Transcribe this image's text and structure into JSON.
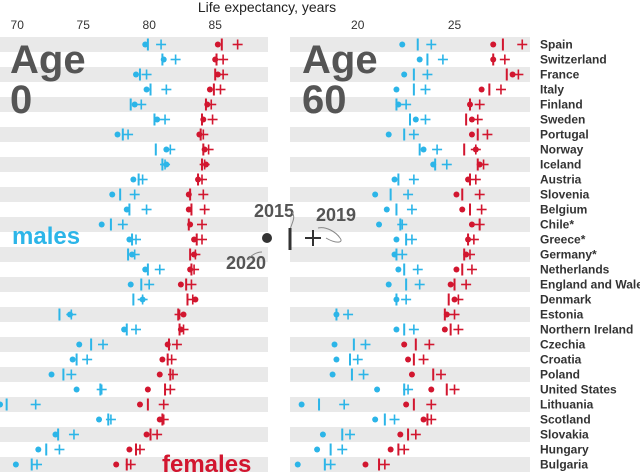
{
  "title": "Life expectancy, years",
  "colors": {
    "males": "#2cb5e8",
    "females": "#d2162f",
    "band": "#e9e9e9",
    "text": "#555555",
    "legend": "#333333"
  },
  "panels": [
    {
      "label_line1": "Age",
      "label_line2": "0",
      "ticks": [
        "70",
        "75",
        "80",
        "85"
      ]
    },
    {
      "label_line1": "Age",
      "label_line2": "60",
      "ticks": [
        "20",
        "25"
      ]
    }
  ],
  "series_labels": {
    "males": "males",
    "females": "females"
  },
  "legend": {
    "year_2015": "2015",
    "year_2019": "2019",
    "year_2020": "2020"
  },
  "chart_data": [
    {
      "type": "scatter",
      "panel": "Age 0",
      "xlim": [
        69,
        89
      ],
      "grid": "alternating row bands",
      "countries": [
        "Spain",
        "Switzerland",
        "France",
        "Italy",
        "Finland",
        "Sweden",
        "Portugal",
        "Norway",
        "Iceland",
        "Austria",
        "Slovenia",
        "Belgium",
        "Chile*",
        "Greece*",
        "Germany*",
        "Netherlands",
        "England and Wales",
        "Denmark",
        "Estonia",
        "Northern Ireland",
        "Czechia",
        "Croatia",
        "Poland",
        "United States",
        "Lithuania",
        "Scotland",
        "Slovakia",
        "Hungary",
        "Bulgaria"
      ],
      "series": [
        {
          "name": "males",
          "y2015": [
            79.9,
            81.0,
            79.3,
            80.1,
            78.6,
            80.4,
            78.0,
            80.5,
            81.0,
            79.2,
            77.8,
            78.5,
            77.1,
            78.7,
            78.4,
            79.9,
            79.4,
            78.8,
            73.2,
            78.3,
            75.6,
            74.5,
            73.5,
            76.3,
            69.2,
            76.9,
            73.1,
            72.2,
            71.1
          ],
          "y2019": [
            80.9,
            82.0,
            79.8,
            81.3,
            79.4,
            81.2,
            78.4,
            81.6,
            81.2,
            79.5,
            78.9,
            79.8,
            78.0,
            79.0,
            78.9,
            80.8,
            80.0,
            79.5,
            74.1,
            79.0,
            76.5,
            75.3,
            74.1,
            76.4,
            71.4,
            77.1,
            74.3,
            73.2,
            71.5
          ]
        },
        {
          "name": "males_2020",
          "values": [
            79.7,
            81.1,
            79.0,
            79.8,
            78.9,
            80.6,
            77.6,
            81.3,
            81.3,
            78.8,
            77.2,
            78.3,
            76.4,
            78.5,
            78.7,
            79.7,
            78.6,
            79.5,
            74.0,
            78.1,
            74.7,
            74.2,
            72.6,
            74.5,
            68.7,
            76.2,
            72.9,
            71.6,
            69.9
          ]
        },
        {
          "name": "females",
          "y2015": [
            85.5,
            85.1,
            85.0,
            84.9,
            84.3,
            84.0,
            83.9,
            84.1,
            84.0,
            83.7,
            83.1,
            83.2,
            83.0,
            83.6,
            83.1,
            83.2,
            82.8,
            82.9,
            82.2,
            82.3,
            81.5,
            81.4,
            81.6,
            81.2,
            79.9,
            81.0,
            80.1,
            79.0,
            78.3
          ]
        },
        {
          "name": "females_2019",
          "values": [
            86.7,
            85.6,
            85.6,
            85.4,
            84.7,
            84.8,
            84.1,
            84.5,
            84.2,
            84.0,
            84.1,
            84.2,
            84.0,
            84.0,
            83.5,
            83.4,
            83.2,
            83.3,
            82.3,
            82.6,
            82.1,
            81.7,
            81.8,
            81.6,
            81.1,
            81.1,
            80.6,
            79.3,
            78.6
          ]
        },
        {
          "name": "females_2020",
          "values": [
            85.2,
            85.0,
            85.2,
            84.6,
            84.4,
            84.1,
            83.8,
            84.2,
            84.3,
            83.7,
            83.0,
            83.0,
            83.1,
            83.4,
            83.4,
            83.1,
            82.4,
            83.5,
            82.6,
            82.4,
            81.4,
            81.0,
            80.8,
            79.9,
            79.3,
            80.8,
            79.8,
            78.5,
            77.5
          ]
        }
      ]
    },
    {
      "type": "scatter",
      "panel": "Age 60",
      "xlim": [
        16.5,
        28.9
      ],
      "grid": "alternating row bands",
      "countries": [
        "Spain",
        "Switzerland",
        "France",
        "Italy",
        "Finland",
        "Sweden",
        "Portugal",
        "Norway",
        "Iceland",
        "Austria",
        "Slovenia",
        "Belgium",
        "Chile*",
        "Greece*",
        "Germany*",
        "Netherlands",
        "England and Wales",
        "Denmark",
        "Estonia",
        "Northern Ireland",
        "Czechia",
        "Croatia",
        "Poland",
        "United States",
        "Lithuania",
        "Scotland",
        "Slovakia",
        "Hungary",
        "Bulgaria"
      ],
      "series": [
        {
          "name": "males",
          "y2015": [
            23.1,
            23.6,
            22.9,
            22.9,
            22.0,
            22.7,
            22.4,
            23.2,
            24.0,
            22.1,
            21.7,
            22.0,
            22.2,
            22.5,
            22.0,
            22.4,
            22.5,
            22.0,
            18.9,
            22.4,
            19.8,
            19.6,
            19.7,
            22.4,
            18.0,
            21.4,
            19.2,
            18.6,
            18.3
          ]
        },
        {
          "name": "males_2019",
          "values": [
            23.8,
            24.4,
            23.6,
            23.5,
            22.5,
            23.5,
            22.9,
            24.1,
            24.6,
            22.9,
            22.6,
            22.8,
            22.3,
            22.8,
            22.3,
            23.1,
            23.2,
            22.5,
            19.5,
            22.9,
            20.4,
            20.0,
            20.3,
            22.6,
            19.3,
            21.9,
            19.6,
            19.2,
            18.6
          ]
        },
        {
          "name": "males_2020",
          "values": [
            22.3,
            23.2,
            22.4,
            22.0,
            22.1,
            23.0,
            21.6,
            23.4,
            23.9,
            21.9,
            20.9,
            21.5,
            21.1,
            22.0,
            21.9,
            22.1,
            21.6,
            22.0,
            18.9,
            22.0,
            18.8,
            18.9,
            18.7,
            21.0,
            17.1,
            20.9,
            18.2,
            17.9,
            16.9
          ]
        },
        {
          "name": "females",
          "y2015": [
            27.5,
            27.0,
            27.7,
            26.8,
            25.8,
            25.6,
            26.2,
            25.5,
            26.2,
            25.8,
            25.4,
            25.8,
            26.3,
            25.7,
            25.5,
            25.4,
            25.0,
            24.7,
            24.5,
            24.8,
            23.0,
            22.9,
            23.9,
            24.6,
            22.9,
            23.6,
            22.6,
            22.1,
            21.1
          ]
        },
        {
          "name": "females_2019",
          "values": [
            28.5,
            27.6,
            28.3,
            27.4,
            26.3,
            26.2,
            26.7,
            26.1,
            26.5,
            26.1,
            26.3,
            26.4,
            26.3,
            26.0,
            25.8,
            25.9,
            25.6,
            25.2,
            25.0,
            25.2,
            23.7,
            23.4,
            24.3,
            25.0,
            23.8,
            23.8,
            23.0,
            22.4,
            21.4
          ]
        },
        {
          "name": "females_2020",
          "values": [
            27.0,
            27.0,
            28.0,
            26.4,
            25.8,
            25.9,
            25.9,
            26.1,
            26.3,
            25.7,
            25.1,
            25.4,
            25.9,
            25.7,
            25.6,
            25.1,
            24.8,
            25.0,
            24.6,
            24.5,
            22.4,
            22.6,
            22.8,
            23.8,
            22.5,
            23.4,
            22.2,
            21.7,
            20.4
          ]
        }
      ]
    }
  ]
}
